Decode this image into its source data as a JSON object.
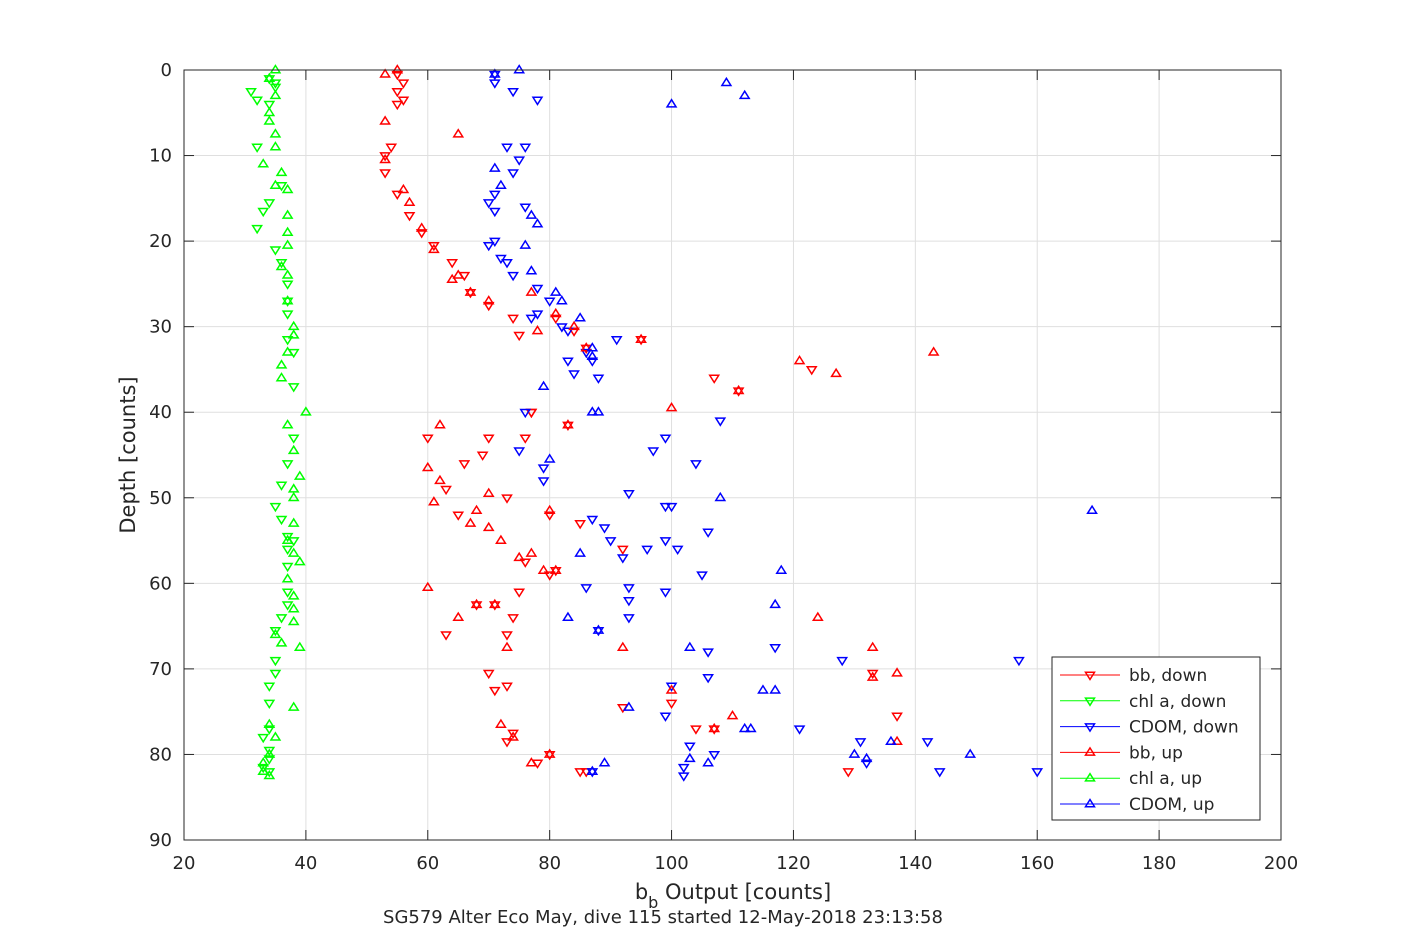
{
  "chart_data": {
    "type": "scatter",
    "xlabel_main": "b",
    "xlabel_sub": "b",
    "xlabel_rest": " Output [counts]",
    "ylabel": "Depth [counts]",
    "caption": "SG579 Alter Eco May, dive 115 started 12-May-2018 23:13:58",
    "xlim": [
      20,
      200
    ],
    "ylim": [
      0,
      90
    ],
    "y_reversed": true,
    "grid": true,
    "legend_position": "bottom-right",
    "xticks": [
      "20",
      "40",
      "60",
      "80",
      "100",
      "120",
      "140",
      "160",
      "180",
      "200"
    ],
    "yticks": [
      "0",
      "10",
      "20",
      "30",
      "40",
      "50",
      "60",
      "70",
      "80",
      "90"
    ],
    "colors": {
      "red": "#ff0000",
      "green": "#00ff00",
      "blue": "#0000ff"
    },
    "series": [
      {
        "name": "bb, down",
        "color": "#ff0000",
        "marker": "triangle-down",
        "x": [
          55,
          56,
          55,
          56,
          55,
          54,
          53,
          53,
          55,
          57,
          59,
          61,
          64,
          66,
          67,
          70,
          74,
          75,
          77,
          81,
          84,
          86,
          95,
          107,
          123,
          111,
          77,
          83,
          76,
          60,
          70,
          69,
          66,
          63,
          65,
          73,
          80,
          85,
          92,
          76,
          81,
          80,
          75,
          71,
          68,
          74,
          73,
          63,
          70,
          73,
          92,
          100,
          104,
          107,
          133,
          137,
          71,
          74,
          73,
          80,
          78,
          85,
          86,
          129
        ],
        "y": [
          0.5,
          1.5,
          2.5,
          3.5,
          4,
          9,
          10,
          12,
          14.5,
          17,
          19,
          20.5,
          22.5,
          24,
          26,
          27.5,
          29,
          31,
          40,
          29,
          30.5,
          32.5,
          31.5,
          36,
          35,
          37.5,
          40,
          41.5,
          43,
          43,
          43,
          45,
          46,
          49,
          52,
          50,
          52,
          53,
          56,
          57.5,
          58.5,
          59,
          61,
          62.5,
          62.5,
          64,
          66,
          66,
          70.5,
          72,
          74.5,
          74,
          77,
          77,
          70.5,
          75.5,
          72.5,
          77.5,
          78.5,
          80,
          81,
          82,
          82,
          82
        ]
      },
      {
        "name": "chl a, down",
        "color": "#00ff00",
        "marker": "triangle-down",
        "x": [
          34,
          35,
          35,
          31,
          32,
          34,
          32,
          32,
          33,
          34,
          36,
          35,
          36,
          37,
          37,
          37,
          37,
          38,
          38,
          38,
          37,
          36,
          35,
          36,
          37,
          38,
          37,
          37,
          37,
          37,
          36,
          35,
          35,
          35,
          34,
          34,
          34,
          33,
          34,
          34,
          34,
          33
        ],
        "y": [
          1,
          1.5,
          2,
          2.5,
          3.5,
          4,
          9,
          18.5,
          16.5,
          15.5,
          13.5,
          21,
          22.5,
          25,
          27,
          28.5,
          31.5,
          33,
          37,
          43,
          46,
          48.5,
          51,
          52.5,
          54.5,
          55,
          56,
          58,
          61,
          62.5,
          64,
          65.5,
          69,
          70.5,
          72,
          74,
          77,
          78,
          79.5,
          80.5,
          82,
          81.5
        ]
      },
      {
        "name": "CDOM, down",
        "color": "#0000ff",
        "marker": "triangle-down",
        "x": [
          71,
          71,
          74,
          78,
          76,
          75,
          74,
          71,
          73,
          76,
          70,
          71,
          72,
          70,
          71,
          73,
          74,
          78,
          78,
          80,
          82,
          83,
          86,
          88,
          87,
          91,
          83,
          84,
          77,
          76,
          75,
          79,
          79,
          93,
          87,
          89,
          90,
          92,
          86,
          93,
          99,
          97,
          99,
          101,
          105,
          93,
          93,
          96,
          108,
          104,
          99,
          100,
          106,
          99,
          106,
          106,
          117,
          121,
          128,
          132,
          142,
          144,
          157,
          160,
          131,
          102,
          102,
          107,
          103,
          99,
          100,
          88,
          87
        ],
        "y": [
          0.5,
          1.5,
          2.5,
          3.5,
          9,
          10.5,
          12,
          14.5,
          9,
          16,
          15.5,
          16.5,
          22,
          20.5,
          20,
          22.5,
          24,
          25.5,
          28.5,
          27,
          30,
          30.5,
          33,
          36,
          34,
          31.5,
          34,
          35.5,
          29,
          40,
          44.5,
          46.5,
          48,
          49.5,
          52.5,
          53.5,
          55,
          57,
          60.5,
          60.5,
          43,
          44.5,
          55,
          56,
          59,
          62,
          64,
          56,
          41,
          46,
          51,
          51,
          54,
          61,
          68,
          71,
          67.5,
          77,
          69,
          81,
          78.5,
          82,
          69,
          82,
          78.5,
          81.5,
          82.5,
          80,
          79,
          75.5,
          72,
          65.5,
          82
        ]
      },
      {
        "name": "bb, up",
        "color": "#ff0000",
        "marker": "triangle-up",
        "x": [
          53,
          55,
          65,
          53,
          53,
          56,
          57,
          59,
          61,
          64,
          65,
          67,
          70,
          77,
          81,
          78,
          84,
          86,
          95,
          121,
          127,
          143,
          111,
          100,
          83,
          62,
          60,
          62,
          61,
          70,
          68,
          70,
          72,
          67,
          80,
          75,
          77,
          79,
          81,
          60,
          68,
          71,
          73,
          92,
          107,
          124,
          133,
          137,
          137,
          133,
          110,
          100,
          80,
          77,
          74,
          72,
          65
        ],
        "y": [
          0.5,
          0,
          7.5,
          6,
          10.5,
          14,
          15.5,
          18.5,
          21,
          24.5,
          24,
          26,
          27,
          26,
          28.5,
          30.5,
          30,
          32.5,
          31.5,
          34,
          35.5,
          33,
          37.5,
          39.5,
          41.5,
          41.5,
          46.5,
          48,
          50.5,
          49.5,
          51.5,
          53.5,
          55,
          53,
          51.5,
          57,
          56.5,
          58.5,
          58.5,
          60.5,
          62.5,
          62.5,
          67.5,
          67.5,
          77,
          64,
          67.5,
          70.5,
          78.5,
          71,
          75.5,
          72.5,
          80,
          81,
          78,
          76.5,
          64
        ]
      },
      {
        "name": "chl a, up",
        "color": "#00ff00",
        "marker": "triangle-up",
        "x": [
          35,
          34,
          35,
          34,
          34,
          35,
          35,
          33,
          36,
          35,
          37,
          37,
          37,
          37,
          36,
          37,
          37,
          38,
          38,
          37,
          36,
          36,
          40,
          37,
          38,
          39,
          38,
          38,
          38,
          37,
          38,
          39,
          37,
          38,
          38,
          38,
          39,
          36,
          35,
          38,
          34,
          35,
          34,
          33,
          33,
          34
        ],
        "y": [
          0,
          1,
          3,
          5,
          6,
          7.5,
          9,
          11,
          12,
          13.5,
          14,
          17,
          19,
          20.5,
          23,
          24,
          27,
          31,
          30,
          33,
          34.5,
          36,
          40,
          41.5,
          44.5,
          47.5,
          49,
          50,
          53,
          55,
          56.5,
          57.5,
          59.5,
          61.5,
          63,
          64.5,
          67.5,
          67,
          66,
          74.5,
          76.5,
          78,
          80,
          81,
          82,
          82.5
        ]
      },
      {
        "name": "CDOM, up",
        "color": "#0000ff",
        "marker": "triangle-up",
        "x": [
          75,
          71,
          109,
          112,
          100,
          71,
          72,
          78,
          77,
          76,
          77,
          81,
          82,
          85,
          87,
          87,
          79,
          88,
          80,
          87,
          85,
          108,
          169,
          118,
          117,
          88,
          83,
          103,
          115,
          117,
          113,
          112,
          136,
          132,
          130,
          149,
          106,
          103,
          93,
          89,
          87
        ],
        "y": [
          0,
          0.5,
          1.5,
          3,
          4,
          11.5,
          13.5,
          18,
          17,
          20.5,
          23.5,
          26,
          27,
          29,
          32.5,
          33.5,
          37,
          40,
          45.5,
          40,
          56.5,
          50,
          51.5,
          58.5,
          62.5,
          65.5,
          64,
          67.5,
          72.5,
          72.5,
          77,
          77,
          78.5,
          80.5,
          80,
          80,
          81,
          80.5,
          74.5,
          81,
          82
        ]
      }
    ]
  }
}
